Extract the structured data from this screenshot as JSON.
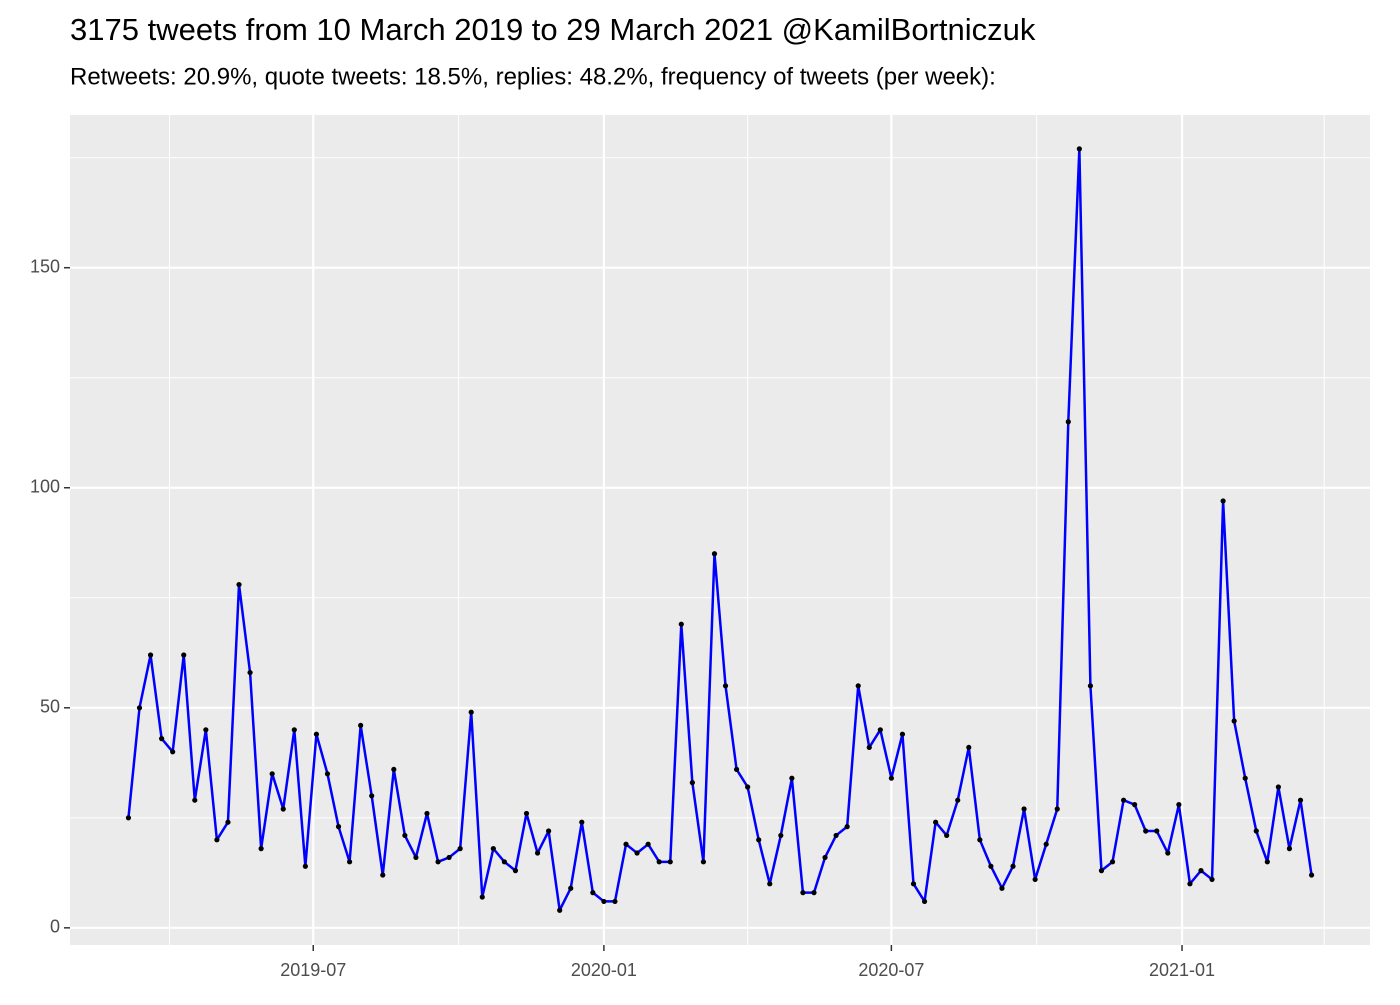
{
  "chart_data": {
    "type": "line",
    "title": "3175 tweets from 10 March 2019 to 29 March 2021 @KamilBortniczuk",
    "subtitle": "Retweets: 20.9%, quote tweets: 18.5%, replies: 48.2%, frequency of tweets (per week):",
    "x_start": "2019-03-06",
    "x_step_days": 7,
    "series": [
      {
        "color": "#0000ff",
        "point_color": "#000000",
        "values": [
          25,
          50,
          62,
          43,
          40,
          62,
          29,
          45,
          20,
          24,
          78,
          58,
          18,
          35,
          27,
          45,
          14,
          44,
          35,
          23,
          15,
          46,
          30,
          12,
          36,
          21,
          16,
          26,
          15,
          16,
          18,
          49,
          7,
          18,
          15,
          13,
          26,
          17,
          22,
          4,
          9,
          24,
          8,
          6,
          6,
          19,
          17,
          19,
          15,
          15,
          69,
          33,
          15,
          85,
          55,
          36,
          32,
          20,
          10,
          21,
          34,
          8,
          8,
          16,
          21,
          23,
          55,
          41,
          45,
          34,
          44,
          10,
          6,
          24,
          21,
          29,
          41,
          20,
          14,
          9,
          14,
          27,
          11,
          19,
          27,
          115,
          177,
          55,
          13,
          15,
          29,
          28,
          22,
          22,
          17,
          28,
          10,
          13,
          11,
          97,
          47,
          34,
          22,
          15,
          32,
          18,
          29,
          12
        ]
      }
    ],
    "xlim": [
      "2019-01-28",
      "2021-04-30"
    ],
    "xticks": [
      {
        "value": "2019-07-01",
        "label": "2019-07"
      },
      {
        "value": "2020-01-01",
        "label": "2020-01"
      },
      {
        "value": "2020-07-01",
        "label": "2020-07"
      },
      {
        "value": "2021-01-01",
        "label": "2021-01"
      }
    ],
    "xminorticks": [
      "2019-04-01",
      "2019-10-01",
      "2020-04-01",
      "2020-10-01",
      "2021-04-01"
    ],
    "ylim": [
      -3.9,
      184.7
    ],
    "yticks": [
      0,
      50,
      100,
      150
    ],
    "yminorticks": [
      25,
      75,
      125,
      175
    ],
    "grid": true
  }
}
